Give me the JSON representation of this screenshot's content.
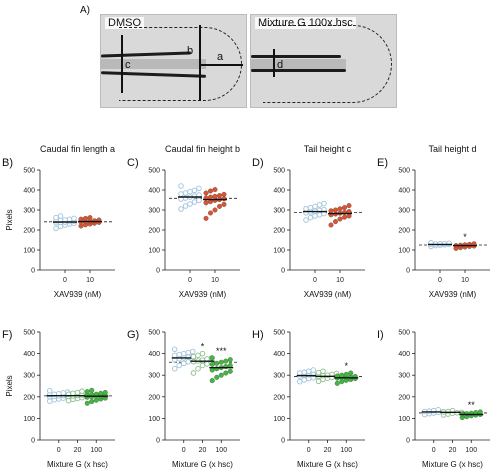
{
  "panel_a": {
    "label": "A)",
    "left_image_title": "DMSO",
    "right_image_title": "Mixture G 100x hsc",
    "measures": [
      "a",
      "b",
      "c",
      "d"
    ]
  },
  "chart_data": [
    {
      "id": "B",
      "panel_label": "B)",
      "type": "scatter",
      "title": "Caudal fin length a",
      "ylabel": "Pixels",
      "xlabel": "XAV939 (nM)",
      "categories": [
        "0",
        "10"
      ],
      "ylim": [
        0,
        500
      ],
      "yticks": [
        0,
        100,
        200,
        300,
        400,
        500
      ],
      "colors": [
        "#9ec3dc",
        "#e0522d"
      ],
      "filled": [
        false,
        true
      ],
      "means": [
        240,
        242
      ],
      "sig": [
        "",
        ""
      ],
      "groups": [
        {
          "label": "0",
          "values": [
            208,
            218,
            225,
            230,
            234,
            236,
            238,
            240,
            242,
            244,
            246,
            248,
            250,
            254,
            258,
            262,
            270
          ]
        },
        {
          "label": "10",
          "values": [
            220,
            226,
            230,
            234,
            238,
            240,
            242,
            244,
            246,
            250,
            254,
            258,
            262
          ]
        }
      ]
    },
    {
      "id": "C",
      "panel_label": "C)",
      "type": "scatter",
      "title": "Caudal fin height b",
      "ylabel": "",
      "xlabel": "XAV939 (nM)",
      "categories": [
        "0",
        "10"
      ],
      "ylim": [
        0,
        500
      ],
      "yticks": [
        0,
        100,
        200,
        300,
        400,
        500
      ],
      "colors": [
        "#9ec3dc",
        "#e0522d"
      ],
      "filled": [
        false,
        true
      ],
      "means": [
        365,
        352
      ],
      "sig": [
        "",
        ""
      ],
      "groups": [
        {
          "label": "0",
          "values": [
            305,
            320,
            330,
            340,
            348,
            355,
            360,
            365,
            370,
            375,
            380,
            385,
            392,
            398,
            408,
            420
          ]
        },
        {
          "label": "10",
          "values": [
            258,
            285,
            300,
            318,
            328,
            336,
            342,
            348,
            352,
            356,
            360,
            364,
            368,
            372,
            378,
            385,
            395,
            402
          ]
        }
      ]
    },
    {
      "id": "D",
      "panel_label": "D)",
      "type": "scatter",
      "title": "Tail height c",
      "ylabel": "",
      "xlabel": "XAV939 (nM)",
      "categories": [
        "0",
        "10"
      ],
      "ylim": [
        0,
        500
      ],
      "yticks": [
        0,
        100,
        200,
        300,
        400,
        500
      ],
      "colors": [
        "#9ec3dc",
        "#e0522d"
      ],
      "filled": [
        false,
        true
      ],
      "means": [
        292,
        282
      ],
      "sig": [
        "",
        ""
      ],
      "groups": [
        {
          "label": "0",
          "values": [
            250,
            262,
            270,
            276,
            282,
            286,
            290,
            294,
            298,
            302,
            306,
            312,
            318,
            325,
            332
          ]
        },
        {
          "label": "10",
          "values": [
            225,
            242,
            255,
            264,
            270,
            276,
            280,
            284,
            288,
            292,
            296,
            300,
            306,
            312,
            322
          ]
        }
      ]
    },
    {
      "id": "E",
      "panel_label": "E)",
      "type": "scatter",
      "title": "Tail height d",
      "ylabel": "",
      "xlabel": "XAV939 (nM)",
      "categories": [
        "0",
        "10"
      ],
      "ylim": [
        0,
        500
      ],
      "yticks": [
        0,
        100,
        200,
        300,
        400,
        500
      ],
      "colors": [
        "#9ec3dc",
        "#e0522d"
      ],
      "filled": [
        false,
        true
      ],
      "means": [
        128,
        122
      ],
      "sig": [
        "",
        "*"
      ],
      "groups": [
        {
          "label": "0",
          "values": [
            118,
            122,
            124,
            126,
            128,
            129,
            130,
            131,
            132,
            134,
            136
          ]
        },
        {
          "label": "10",
          "values": [
            108,
            112,
            115,
            118,
            120,
            122,
            124,
            126,
            128,
            131
          ]
        }
      ]
    },
    {
      "id": "F",
      "panel_label": "F)",
      "type": "scatter",
      "title": "",
      "ylabel": "Pixels",
      "xlabel": "Mixture G (x hsc)",
      "categories": [
        "0",
        "20",
        "100"
      ],
      "ylim": [
        0,
        500
      ],
      "yticks": [
        0,
        100,
        200,
        300,
        400,
        500
      ],
      "colors": [
        "#9ec3dc",
        "#8cbf8c",
        "#3dbb3d"
      ],
      "filled": [
        false,
        false,
        true
      ],
      "means": [
        205,
        205,
        203
      ],
      "sig": [
        "",
        "",
        ""
      ],
      "groups": [
        {
          "label": "0",
          "values": [
            180,
            186,
            190,
            194,
            198,
            200,
            202,
            204,
            206,
            208,
            210,
            212,
            214,
            218,
            222,
            228
          ]
        },
        {
          "label": "20",
          "values": [
            182,
            188,
            192,
            196,
            200,
            202,
            204,
            206,
            208,
            210,
            212,
            216,
            220,
            226
          ]
        },
        {
          "label": "100",
          "values": [
            170,
            178,
            184,
            190,
            194,
            198,
            200,
            202,
            204,
            206,
            208,
            210,
            212,
            216,
            220,
            224,
            230
          ]
        }
      ]
    },
    {
      "id": "G",
      "panel_label": "G)",
      "type": "scatter",
      "title": "",
      "ylabel": "",
      "xlabel": "Mixture G (x hsc)",
      "categories": [
        "0",
        "20",
        "100"
      ],
      "ylim": [
        0,
        500
      ],
      "yticks": [
        0,
        100,
        200,
        300,
        400,
        500
      ],
      "colors": [
        "#9ec3dc",
        "#8cbf8c",
        "#3dbb3d"
      ],
      "filled": [
        false,
        false,
        true
      ],
      "means": [
        380,
        365,
        335
      ],
      "sig": [
        "",
        "*",
        "***"
      ],
      "groups": [
        {
          "label": "0",
          "values": [
            330,
            345,
            355,
            362,
            368,
            372,
            376,
            380,
            384,
            388,
            392,
            396,
            400,
            405,
            410,
            420
          ]
        },
        {
          "label": "20",
          "values": [
            310,
            330,
            345,
            352,
            358,
            362,
            366,
            370,
            375,
            380,
            386,
            392,
            400
          ]
        },
        {
          "label": "100",
          "values": [
            275,
            290,
            300,
            310,
            318,
            324,
            330,
            335,
            340,
            345,
            350,
            355,
            360,
            365,
            372,
            380
          ]
        }
      ]
    },
    {
      "id": "H",
      "panel_label": "H)",
      "type": "scatter",
      "title": "",
      "ylabel": "",
      "xlabel": "Mixture G (x hsc)",
      "categories": [
        "0",
        "20",
        "100"
      ],
      "ylim": [
        0,
        500
      ],
      "yticks": [
        0,
        100,
        200,
        300,
        400,
        500
      ],
      "colors": [
        "#9ec3dc",
        "#8cbf8c",
        "#3dbb3d"
      ],
      "filled": [
        false,
        false,
        true
      ],
      "means": [
        298,
        295,
        288
      ],
      "sig": [
        "",
        "",
        "*"
      ],
      "groups": [
        {
          "label": "0",
          "values": [
            270,
            278,
            284,
            288,
            292,
            296,
            300,
            302,
            304,
            306,
            310,
            314,
            318,
            324
          ]
        },
        {
          "label": "20",
          "values": [
            272,
            280,
            286,
            290,
            294,
            296,
            298,
            300,
            304,
            308,
            312,
            318
          ]
        },
        {
          "label": "100",
          "values": [
            262,
            270,
            276,
            280,
            284,
            286,
            288,
            290,
            292,
            294,
            296,
            300,
            304,
            310
          ]
        }
      ]
    },
    {
      "id": "I",
      "panel_label": "I)",
      "type": "scatter",
      "title": "",
      "ylabel": "",
      "xlabel": "Mixture G (x hsc)",
      "categories": [
        "0",
        "20",
        "100"
      ],
      "ylim": [
        0,
        500
      ],
      "yticks": [
        0,
        100,
        200,
        300,
        400,
        500
      ],
      "colors": [
        "#9ec3dc",
        "#8cbf8c",
        "#3dbb3d"
      ],
      "filled": [
        false,
        false,
        true
      ],
      "means": [
        130,
        128,
        118
      ],
      "sig": [
        "",
        "",
        "**"
      ],
      "groups": [
        {
          "label": "0",
          "values": [
            118,
            122,
            125,
            128,
            130,
            132,
            134,
            136,
            140
          ]
        },
        {
          "label": "20",
          "values": [
            116,
            120,
            124,
            126,
            128,
            130,
            132,
            136
          ]
        },
        {
          "label": "100",
          "values": [
            104,
            108,
            112,
            115,
            118,
            120,
            122,
            124,
            127,
            130
          ]
        }
      ]
    }
  ]
}
